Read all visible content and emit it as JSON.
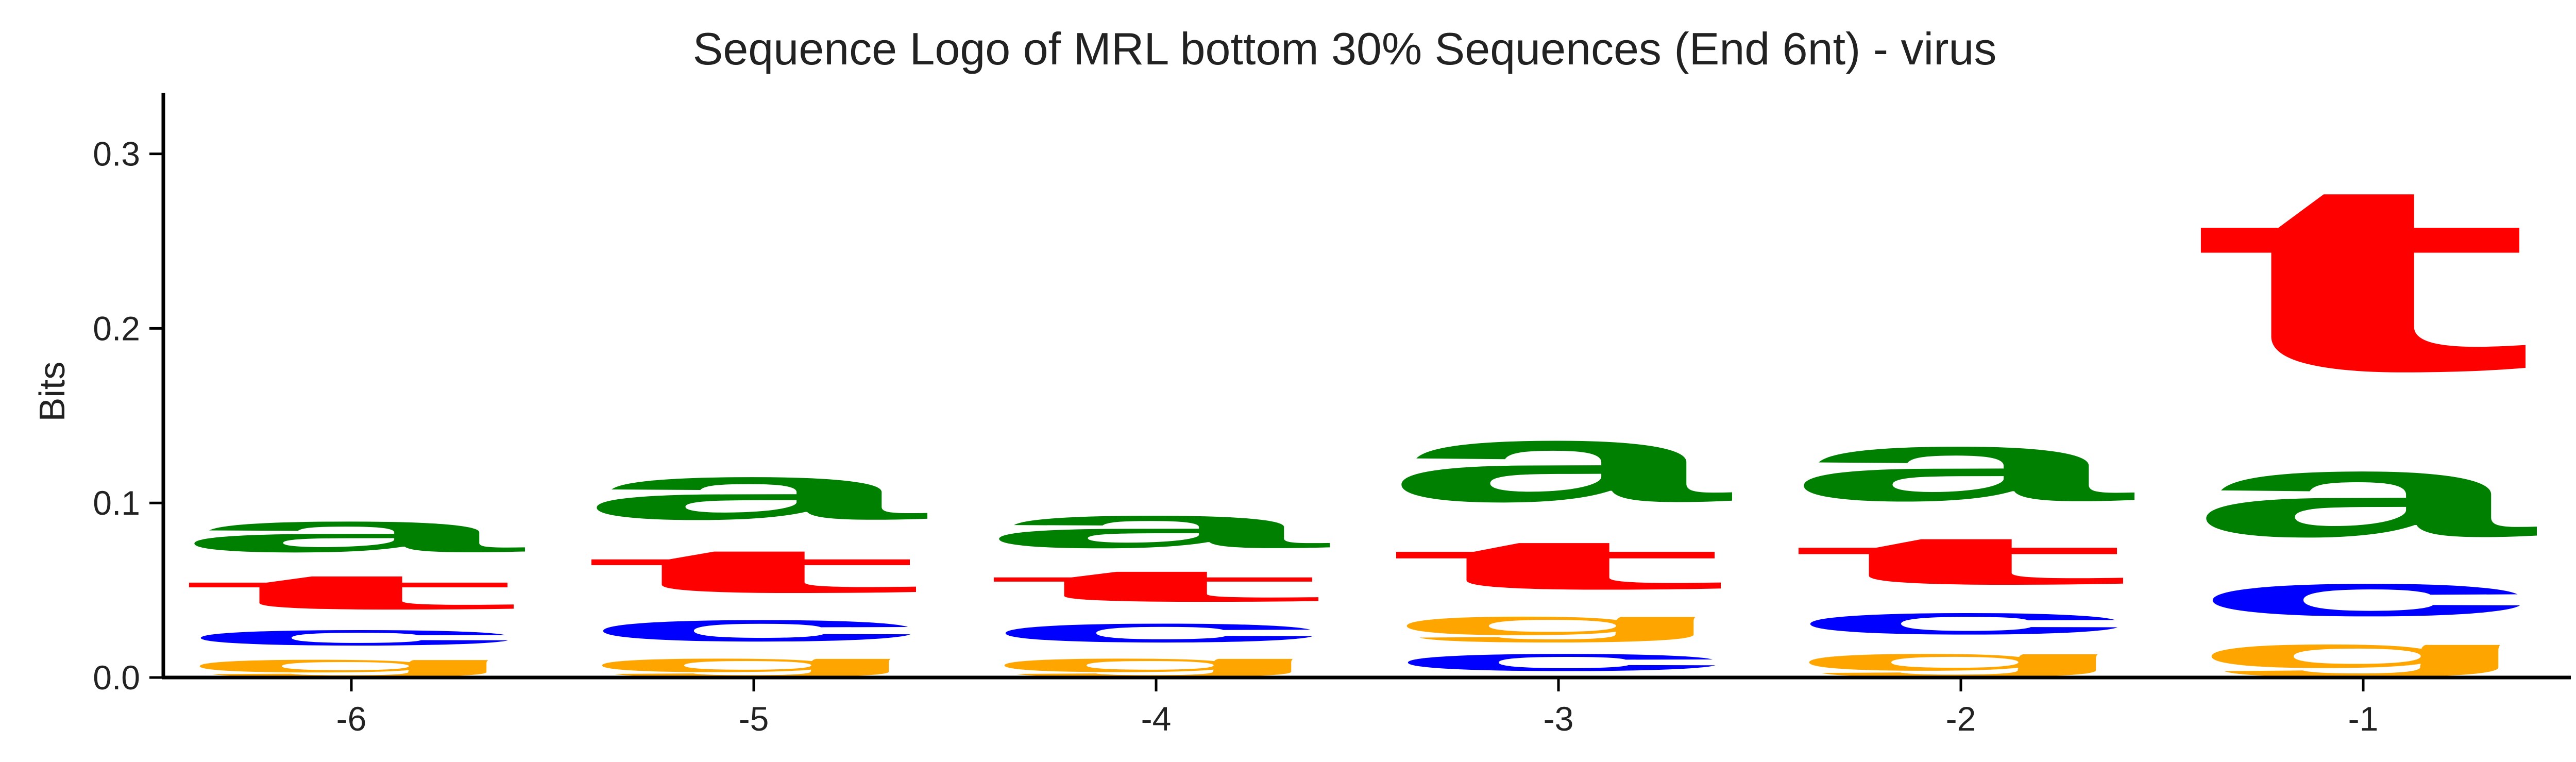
{
  "chart_data": {
    "type": "sequence-logo",
    "title": "Sequence Logo of MRL bottom 30% Sequences (End 6nt) - virus",
    "xlabel": "",
    "ylabel": "Bits",
    "ylim": [
      0,
      0.335
    ],
    "yticks": [
      0.0,
      0.1,
      0.2,
      0.3
    ],
    "ytick_labels": [
      "0.0",
      "0.1",
      "0.2",
      "0.3"
    ],
    "grid": false,
    "legend": "none",
    "colors": {
      "a": "#008000",
      "c": "#0000ff",
      "g": "#ffa500",
      "t": "#ff0000"
    },
    "positions": [
      {
        "label": "-6",
        "stack": [
          {
            "base": "g",
            "height": 0.015
          },
          {
            "base": "c",
            "height": 0.018
          },
          {
            "base": "t",
            "height": 0.032
          },
          {
            "base": "a",
            "height": 0.036
          }
        ]
      },
      {
        "label": "-5",
        "stack": [
          {
            "base": "g",
            "height": 0.016
          },
          {
            "base": "c",
            "height": 0.025
          },
          {
            "base": "t",
            "height": 0.04
          },
          {
            "base": "a",
            "height": 0.05
          }
        ]
      },
      {
        "label": "-4",
        "stack": [
          {
            "base": "g",
            "height": 0.016
          },
          {
            "base": "c",
            "height": 0.022
          },
          {
            "base": "t",
            "height": 0.029
          },
          {
            "base": "a",
            "height": 0.038
          }
        ]
      },
      {
        "label": "-3",
        "stack": [
          {
            "base": "c",
            "height": 0.02
          },
          {
            "base": "g",
            "height": 0.022
          },
          {
            "base": "t",
            "height": 0.045
          },
          {
            "base": "a",
            "height": 0.072
          }
        ]
      },
      {
        "label": "-2",
        "stack": [
          {
            "base": "g",
            "height": 0.02
          },
          {
            "base": "c",
            "height": 0.025
          },
          {
            "base": "t",
            "height": 0.044
          },
          {
            "base": "a",
            "height": 0.064
          }
        ]
      },
      {
        "label": "-1",
        "stack": [
          {
            "base": "g",
            "height": 0.028
          },
          {
            "base": "c",
            "height": 0.038
          },
          {
            "base": "a",
            "height": 0.077
          },
          {
            "base": "t",
            "height": 0.172
          }
        ]
      }
    ]
  }
}
